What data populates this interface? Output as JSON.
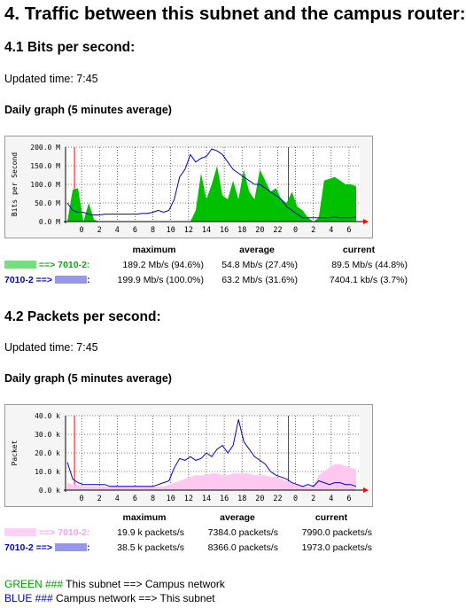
{
  "page": {
    "title": "4. Traffic between this subnet and the campus router:",
    "legend_note": {
      "green_word": "GREEN ###",
      "green_text": " This subnet ==> Campus network",
      "blue_word": "BLUE ###",
      "blue_text": " Campus network ==> This subnet"
    }
  },
  "sections": [
    {
      "heading": "4.1 Bits per second:",
      "updated": "Updated time: 7:45",
      "graph_title": "Daily graph (5 minutes average)",
      "stats_headers": [
        "maximum",
        "average",
        "current"
      ],
      "rows": [
        {
          "label": "==> 7010-2:",
          "max": "189.2 Mb/s (94.6%)",
          "avg": "54.8 Mb/s (27.4%)",
          "cur": "89.5 Mb/s (44.8%)"
        },
        {
          "label": "7010-2 ==>",
          "label_suffix": ":",
          "max": "199.9 Mb/s (100.0%)",
          "avg": "63.2 Mb/s (31.6%)",
          "cur": "7404.1 kb/s (3.7%)"
        }
      ]
    },
    {
      "heading": "4.2 Packets per second:",
      "updated": "Updated time: 7:45",
      "graph_title": "Daily graph (5 minutes average)",
      "stats_headers": [
        "maximum",
        "average",
        "current"
      ],
      "rows": [
        {
          "label": "==> 7010-2:",
          "max": "19.9 k packets/s",
          "avg": "7384.0 packets/s",
          "cur": "7990.0 packets/s"
        },
        {
          "label": "7010-2 ==>",
          "label_suffix": ":",
          "max": "38.5 k packets/s",
          "avg": "8366.0 packets/s",
          "cur": "1973.0 packets/s"
        }
      ]
    }
  ],
  "chart_data": [
    {
      "type": "area",
      "ylabel": "Bits per Second",
      "y_ticks": [
        "0.0 M",
        "50.0 M",
        "100.0 M",
        "150.0 M",
        "200.0 M"
      ],
      "ylim": [
        0,
        200
      ],
      "x_ticks": [
        "0",
        "2",
        "4",
        "6",
        "8",
        "10",
        "12",
        "14",
        "16",
        "18",
        "20",
        "22",
        "0",
        "2",
        "4",
        "6"
      ],
      "grid": true,
      "colors": {
        "green": "#00c000",
        "blue": "#0000c8",
        "red": "#ff0000"
      },
      "series": [
        {
          "values": [
            0,
            85,
            90,
            0,
            50,
            5,
            0,
            0,
            0,
            0,
            0,
            0,
            0,
            0,
            0,
            0,
            0,
            0,
            0,
            0,
            0,
            0,
            0,
            0,
            30,
            130,
            60,
            100,
            150,
            70,
            60,
            110,
            60,
            140,
            80,
            60,
            140,
            110,
            80,
            90,
            60,
            50,
            80,
            40,
            30,
            10,
            0,
            10,
            110,
            115,
            120,
            110,
            100,
            100,
            95
          ]
        },
        {
          "values": [
            50,
            30,
            25,
            25,
            20,
            18,
            18,
            20,
            20,
            20,
            20,
            20,
            20,
            20,
            22,
            22,
            25,
            30,
            25,
            30,
            60,
            120,
            140,
            180,
            160,
            170,
            175,
            195,
            190,
            180,
            160,
            140,
            130,
            120,
            110,
            100,
            100,
            90,
            80,
            70,
            60,
            40,
            30,
            20,
            10,
            10,
            10,
            10,
            10,
            10,
            12,
            10,
            10,
            10,
            12
          ]
        }
      ]
    },
    {
      "type": "area",
      "ylabel": "Packet",
      "y_ticks": [
        "0.0 k",
        "10.0 k",
        "20.0 k",
        "30.0 k",
        "40.0 k"
      ],
      "ylim": [
        0,
        40
      ],
      "x_ticks": [
        "0",
        "2",
        "4",
        "6",
        "8",
        "10",
        "12",
        "14",
        "16",
        "18",
        "20",
        "22",
        "0",
        "2",
        "4",
        "6"
      ],
      "grid": true,
      "colors": {
        "pink": "#ffc8f0",
        "blue": "#0000c8",
        "red": "#ff0000"
      },
      "series": [
        {
          "values": [
            4,
            3,
            3,
            2,
            2,
            2,
            2,
            2,
            2,
            2,
            2,
            2,
            2,
            2,
            2,
            2,
            2,
            2,
            2,
            3,
            4,
            5,
            6,
            7,
            8,
            8,
            8,
            9,
            9,
            8,
            8,
            9,
            9,
            9,
            9,
            8,
            8,
            8,
            7,
            7,
            6,
            5,
            4,
            3,
            2,
            2,
            2,
            8,
            10,
            12,
            14,
            14,
            13,
            12,
            11
          ]
        },
        {
          "values": [
            15,
            6,
            4,
            3,
            3,
            3,
            3,
            3,
            2,
            2,
            2,
            2,
            2,
            2,
            2,
            2,
            2,
            3,
            4,
            5,
            12,
            17,
            16,
            18,
            16,
            17,
            20,
            18,
            22,
            24,
            20,
            24,
            38,
            26,
            22,
            18,
            16,
            14,
            10,
            8,
            7,
            6,
            4,
            3,
            2,
            3,
            2,
            5,
            4,
            3,
            4,
            4,
            3,
            3,
            2
          ]
        }
      ]
    }
  ]
}
